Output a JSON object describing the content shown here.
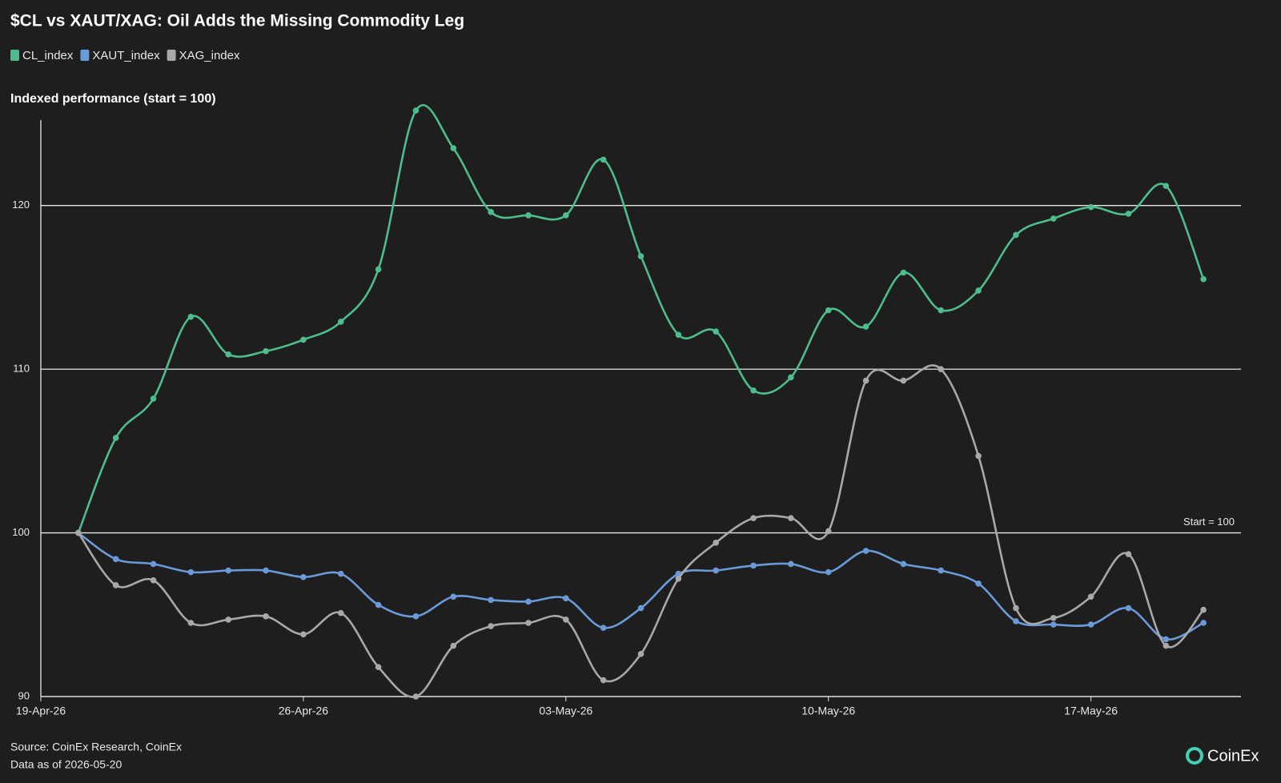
{
  "chart_data": {
    "type": "line",
    "title": "$CL vs XAUT/XAG: Oil Adds the Missing Commodity Leg",
    "subtitle": "Indexed performance (start = 100)",
    "annotation": "Start = 100",
    "source": "Source: CoinEx Research, CoinEx",
    "note": "Data as of 2026-05-20",
    "logo": "CoinEx",
    "x": [
      "2026-04-20",
      "2026-04-21",
      "2026-04-22",
      "2026-04-23",
      "2026-04-24",
      "2026-04-25",
      "2026-04-26",
      "2026-04-27",
      "2026-04-28",
      "2026-04-29",
      "2026-04-30",
      "2026-05-01",
      "2026-05-02",
      "2026-05-03",
      "2026-05-04",
      "2026-05-05",
      "2026-05-06",
      "2026-05-07",
      "2026-05-08",
      "2026-05-09",
      "2026-05-10",
      "2026-05-11",
      "2026-05-12",
      "2026-05-13",
      "2026-05-14",
      "2026-05-15",
      "2026-05-16",
      "2026-05-17",
      "2026-05-18",
      "2026-05-19",
      "2026-05-20"
    ],
    "series": [
      {
        "name": "CL_index",
        "color": "#4dbd8b",
        "values": [
          100,
          105.8,
          108.2,
          113.2,
          110.9,
          111.1,
          111.8,
          112.9,
          116.1,
          125.8,
          123.5,
          119.6,
          119.4,
          119.4,
          122.8,
          116.9,
          112.1,
          112.3,
          108.7,
          109.5,
          113.6,
          112.6,
          115.9,
          113.6,
          114.8,
          118.2,
          119.2,
          119.9,
          119.5,
          121.2,
          115.5
        ]
      },
      {
        "name": "XAUT_index",
        "color": "#6a9bd8",
        "values": [
          100,
          98.4,
          98.1,
          97.6,
          97.7,
          97.7,
          97.3,
          97.5,
          95.6,
          94.9,
          96.1,
          95.9,
          95.8,
          96.0,
          94.2,
          95.4,
          97.5,
          97.7,
          98.0,
          98.1,
          97.6,
          98.9,
          98.1,
          97.7,
          96.9,
          94.6,
          94.4,
          94.4,
          95.4,
          93.5,
          94.5
        ]
      },
      {
        "name": "XAG_index",
        "color": "#a8a8a8",
        "values": [
          100,
          96.8,
          97.1,
          94.5,
          94.7,
          94.9,
          93.8,
          95.1,
          91.8,
          90.0,
          93.1,
          94.3,
          94.5,
          94.7,
          91.0,
          92.6,
          97.2,
          99.4,
          100.9,
          100.9,
          100.1,
          109.3,
          109.3,
          110.0,
          104.7,
          95.4,
          94.8,
          96.1,
          98.7,
          93.1,
          95.3
        ]
      }
    ],
    "xlim": [
      "2026-04-19",
      "2026-05-21"
    ],
    "xticks": [
      {
        "value": "2026-04-19",
        "label": "19-Apr-26"
      },
      {
        "value": "2026-04-26",
        "label": "26-Apr-26"
      },
      {
        "value": "2026-05-03",
        "label": "03-May-26"
      },
      {
        "value": "2026-05-10",
        "label": "10-May-26"
      },
      {
        "value": "2026-05-17",
        "label": "17-May-26"
      }
    ],
    "ylim": [
      90,
      126
    ],
    "yticks": [
      90,
      100,
      110,
      120
    ],
    "grid": true,
    "legend": "top-left"
  }
}
